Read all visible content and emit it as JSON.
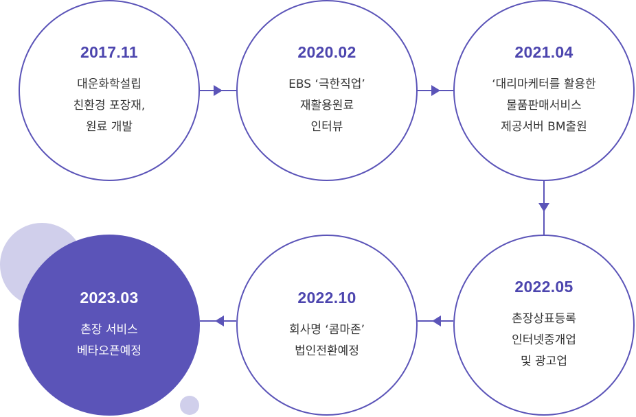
{
  "colors": {
    "accent": "#5b54b8",
    "decor": "#d0cfeb",
    "text": "#333333"
  },
  "timeline": [
    {
      "year": "2017.11",
      "lines": [
        "대운화학설립",
        "친환경 포장재,",
        "원료 개발"
      ]
    },
    {
      "year": "2020.02",
      "lines": [
        "EBS ‘극한직업’",
        "재활용원료",
        "인터뷰"
      ]
    },
    {
      "year": "2021.04",
      "lines": [
        "‘대리마케터를 활용한",
        "물품판매서비스",
        "제공서버 BM출원"
      ]
    },
    {
      "year": "2022.05",
      "lines": [
        "촌장상표등록",
        "인터넷중개업",
        "및 광고업"
      ]
    },
    {
      "year": "2022.10",
      "lines": [
        "회사명 ‘콤마존’",
        "법인전환예정"
      ]
    },
    {
      "year": "2023.03",
      "lines": [
        "촌장 서비스",
        "베타오픈예정"
      ]
    }
  ]
}
